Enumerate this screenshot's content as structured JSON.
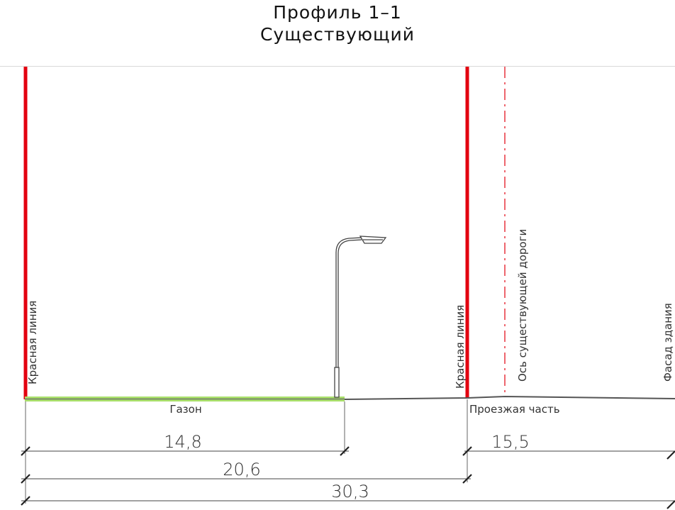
{
  "header": {
    "title_line1": "Профиль 1–1",
    "title_line2": "Существующий"
  },
  "labels": {
    "red_line_left": "Красная линия",
    "red_line_right": "Красная линия",
    "road_axis": "Ось существующей дороги",
    "facade": "Фасад здания",
    "lawn": "Газон",
    "carriageway": "Проезжая часть"
  },
  "dimensions": {
    "lawn_width": "14,8",
    "carriageway_width": "15,5",
    "to_red_line": "20,6",
    "total": "30,3"
  },
  "colors": {
    "red_line": "#e3000f",
    "axis_line": "#e3000f",
    "lawn": "#a8dd6a",
    "ground": "#555555",
    "dimension": "#333333"
  },
  "icons": {
    "street_lamp": "street-lamp-icon"
  }
}
